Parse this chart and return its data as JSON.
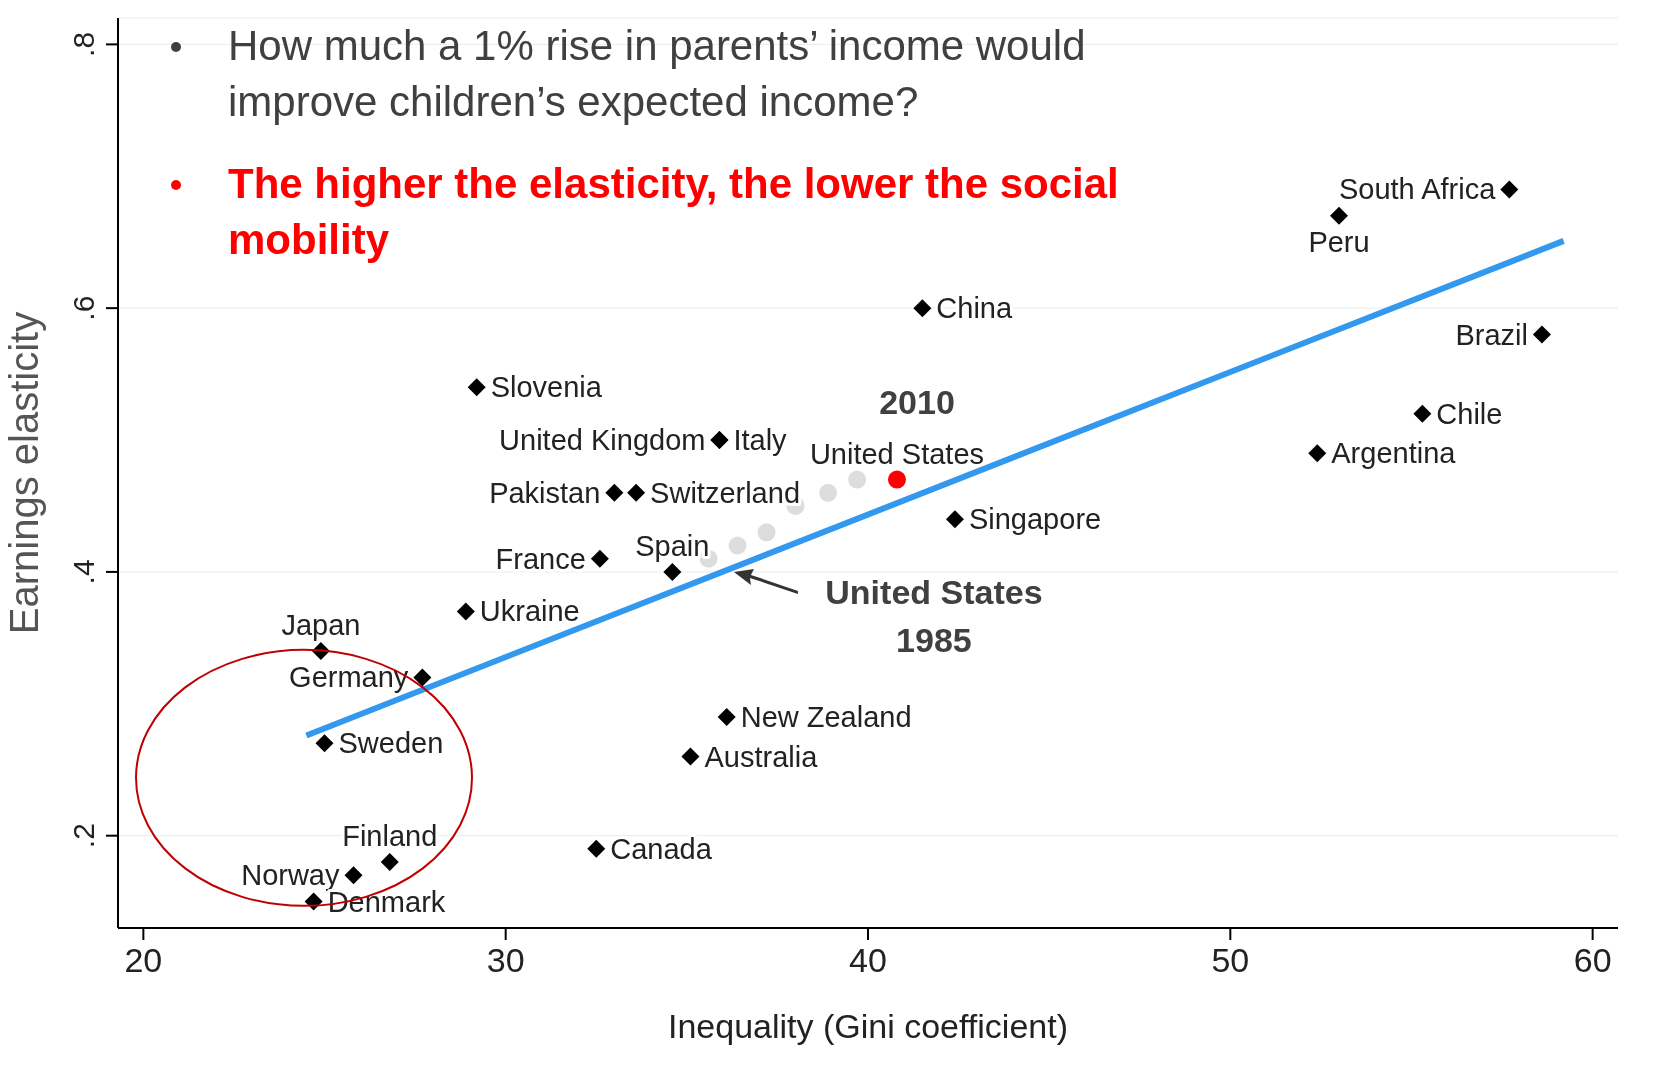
{
  "chart_data": {
    "type": "scatter",
    "xlabel": "Inequality (Gini coefficient)",
    "ylabel": "Earnings  elasticity",
    "xlim": [
      19.3,
      60.7
    ],
    "xticks": [
      20,
      30,
      40,
      50,
      60
    ],
    "ylim": [
      0.13,
      0.82
    ],
    "yticks": [
      {
        "value": 0.2,
        "label": ".2"
      },
      {
        "value": 0.4,
        "label": ".4"
      },
      {
        "value": 0.6,
        "label": ".6"
      },
      {
        "value": 0.8,
        "label": ".8"
      }
    ],
    "grid": "y",
    "marker": "diamond",
    "annotations": [
      "How much a 1% rise in parents’ income would improve children’s expected income?",
      "The higher the elasticity, the lower the social mobility",
      {
        "text": "United States 1985",
        "x": 36.3,
        "y": 0.4
      },
      {
        "text": "2010",
        "x": 40.8,
        "y": 0.47
      }
    ],
    "series": [
      {
        "type": "line",
        "x": [
          24.5,
          59.2
        ],
        "values": [
          0.276,
          0.651
        ],
        "color": "#3399ee",
        "marker": "none"
      },
      {
        "name": "South Africa",
        "x": [
          57.7
        ],
        "values": [
          0.69
        ],
        "color": "#000000"
      },
      {
        "name": "Peru",
        "x": [
          53.0
        ],
        "values": [
          0.67
        ],
        "color": "#000000"
      },
      {
        "name": "China",
        "x": [
          41.5
        ],
        "values": [
          0.6
        ],
        "color": "#000000"
      },
      {
        "name": "Brazil",
        "x": [
          58.6
        ],
        "values": [
          0.58
        ],
        "color": "#000000"
      },
      {
        "name": "Chile",
        "x": [
          55.3
        ],
        "values": [
          0.52
        ],
        "color": "#000000"
      },
      {
        "name": "Argentina",
        "x": [
          52.4
        ],
        "values": [
          0.49
        ],
        "color": "#000000"
      },
      {
        "name": "Slovenia",
        "x": [
          29.2
        ],
        "values": [
          0.54
        ],
        "color": "#000000"
      },
      {
        "name": "United Kingdom",
        "x": [
          35.9
        ],
        "values": [
          0.5
        ],
        "color": "#000000"
      },
      {
        "name": "Italy",
        "x": [
          35.9
        ],
        "values": [
          0.5
        ],
        "color": "#000000"
      },
      {
        "name": "Pakistan",
        "x": [
          33.0
        ],
        "values": [
          0.46
        ],
        "color": "#000000"
      },
      {
        "name": "Switzerland",
        "x": [
          33.6
        ],
        "values": [
          0.46
        ],
        "color": "#000000"
      },
      {
        "name": "Singapore",
        "x": [
          42.4
        ],
        "values": [
          0.44
        ],
        "color": "#000000"
      },
      {
        "name": "France",
        "x": [
          32.6
        ],
        "values": [
          0.41
        ],
        "color": "#000000"
      },
      {
        "name": "Spain",
        "x": [
          34.6
        ],
        "values": [
          0.4
        ],
        "color": "#000000"
      },
      {
        "name": "Ukraine",
        "x": [
          28.9
        ],
        "values": [
          0.37
        ],
        "color": "#000000"
      },
      {
        "name": "Japan",
        "x": [
          24.9
        ],
        "values": [
          0.34
        ],
        "color": "#000000"
      },
      {
        "name": "Germany",
        "x": [
          27.7
        ],
        "values": [
          0.32
        ],
        "color": "#000000"
      },
      {
        "name": "New Zealand",
        "x": [
          36.1
        ],
        "values": [
          0.29
        ],
        "color": "#000000"
      },
      {
        "name": "Sweden",
        "x": [
          25.0
        ],
        "values": [
          0.27
        ],
        "color": "#000000"
      },
      {
        "name": "Australia",
        "x": [
          35.1
        ],
        "values": [
          0.26
        ],
        "color": "#000000"
      },
      {
        "name": "Canada",
        "x": [
          32.5
        ],
        "values": [
          0.19
        ],
        "color": "#000000"
      },
      {
        "name": "Finland",
        "x": [
          26.8
        ],
        "values": [
          0.18
        ],
        "color": "#000000"
      },
      {
        "name": "Norway",
        "x": [
          25.8
        ],
        "values": [
          0.17
        ],
        "color": "#000000"
      },
      {
        "name": "Denmark",
        "x": [
          24.7
        ],
        "values": [
          0.15
        ],
        "color": "#000000"
      },
      {
        "x": [
          35.6,
          36.4,
          37.2,
          38.0,
          38.9,
          39.7
        ],
        "values": [
          0.41,
          0.42,
          0.43,
          0.45,
          0.46,
          0.47
        ],
        "color": "#dddddd",
        "marker": "circle"
      },
      {
        "name": "United States",
        "x": [
          40.8
        ],
        "values": [
          0.47
        ],
        "color": "#ff0000",
        "marker": "circle"
      }
    ]
  }
}
